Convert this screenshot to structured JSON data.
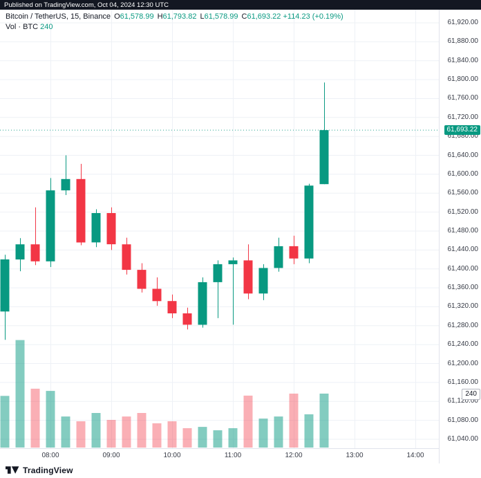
{
  "publish_bar": {
    "text": "Published on TradingView.com, Oct 04, 2024 12:30 UTC"
  },
  "legend": {
    "title": "Bitcoin / TetherUS, 15, Binance",
    "ohlc": {
      "o_label": "O",
      "o_value": "61,578.99",
      "h_label": "H",
      "h_value": "61,793.82",
      "l_label": "L",
      "l_value": "61,578.99",
      "c_label": "C",
      "c_value": "61,693.22",
      "change": "+114.23 (+0.19%)"
    },
    "volume_label": "Vol · BTC",
    "volume_value": "240"
  },
  "price_axis": {
    "labels": [
      "61,920.00",
      "61,880.00",
      "61,840.00",
      "61,800.00",
      "61,760.00",
      "61,720.00",
      "61,680.00",
      "61,640.00",
      "61,600.00",
      "61,560.00",
      "61,520.00",
      "61,480.00",
      "61,440.00",
      "61,400.00",
      "61,360.00",
      "61,320.00",
      "61,280.00",
      "61,240.00",
      "61,200.00",
      "61,160.00",
      "61,120.00",
      "61,080.00",
      "61,040.00"
    ],
    "last_price_label": "61,693.22",
    "volume_badge": "240"
  },
  "time_axis": {
    "labels": [
      "08:00",
      "09:00",
      "10:00",
      "11:00",
      "12:00",
      "13:00",
      "14:00"
    ]
  },
  "footer": {
    "brand": "TradingView"
  },
  "colors": {
    "up": "#089981",
    "down": "#F23645",
    "vol_up": "rgba(8,153,129,0.5)",
    "vol_down": "rgba(242,54,69,0.4)",
    "grid": "#eef1f6",
    "axis_text": "#363a45",
    "close_line": "#089981",
    "separator": "#e0e3eb",
    "publish_bg": "#131722"
  },
  "chart_data": {
    "type": "candlestick",
    "title": "Bitcoin / TetherUS, 15, Binance",
    "symbol": "Bitcoin / TetherUS",
    "interval_minutes": 15,
    "exchange": "Binance",
    "y_axis": {
      "min": 61040,
      "max": 61920,
      "step": 40
    },
    "x_ticks": [
      "08:00",
      "09:00",
      "10:00",
      "11:00",
      "12:00",
      "13:00",
      "14:00"
    ],
    "last_close": 61693.22,
    "last_close_label": "61,693.22",
    "last_volume": 240,
    "candles": [
      {
        "time": "07:15",
        "open": 61310,
        "high": 61430,
        "low": 61250,
        "close": 61420,
        "volume": 230
      },
      {
        "time": "07:30",
        "open": 61420,
        "high": 61465,
        "low": 61395,
        "close": 61452,
        "volume": 478
      },
      {
        "time": "07:45",
        "open": 61452,
        "high": 61530,
        "low": 61408,
        "close": 61416,
        "volume": 262
      },
      {
        "time": "08:00",
        "open": 61416,
        "high": 61592,
        "low": 61404,
        "close": 61566,
        "volume": 252
      },
      {
        "time": "08:15",
        "open": 61566,
        "high": 61640,
        "low": 61556,
        "close": 61590,
        "volume": 138
      },
      {
        "time": "08:30",
        "open": 61590,
        "high": 61622,
        "low": 61450,
        "close": 61456,
        "volume": 117
      },
      {
        "time": "08:45",
        "open": 61456,
        "high": 61526,
        "low": 61446,
        "close": 61518,
        "volume": 154
      },
      {
        "time": "09:00",
        "open": 61518,
        "high": 61530,
        "low": 61440,
        "close": 61452,
        "volume": 123
      },
      {
        "time": "09:15",
        "open": 61452,
        "high": 61466,
        "low": 61388,
        "close": 61398,
        "volume": 138
      },
      {
        "time": "09:30",
        "open": 61398,
        "high": 61412,
        "low": 61350,
        "close": 61358,
        "volume": 154
      },
      {
        "time": "09:45",
        "open": 61358,
        "high": 61382,
        "low": 61322,
        "close": 61332,
        "volume": 108
      },
      {
        "time": "10:00",
        "open": 61332,
        "high": 61346,
        "low": 61296,
        "close": 61306,
        "volume": 117
      },
      {
        "time": "10:15",
        "open": 61306,
        "high": 61318,
        "low": 61272,
        "close": 61282,
        "volume": 86
      },
      {
        "time": "10:30",
        "open": 61282,
        "high": 61382,
        "low": 61276,
        "close": 61372,
        "volume": 92
      },
      {
        "time": "10:45",
        "open": 61372,
        "high": 61418,
        "low": 61296,
        "close": 61410,
        "volume": 77
      },
      {
        "time": "11:00",
        "open": 61410,
        "high": 61424,
        "low": 61282,
        "close": 61418,
        "volume": 86
      },
      {
        "time": "11:15",
        "open": 61418,
        "high": 61452,
        "low": 61336,
        "close": 61348,
        "volume": 231
      },
      {
        "time": "11:30",
        "open": 61348,
        "high": 61410,
        "low": 61334,
        "close": 61402,
        "volume": 129
      },
      {
        "time": "11:45",
        "open": 61402,
        "high": 61466,
        "low": 61394,
        "close": 61448,
        "volume": 138
      },
      {
        "time": "12:00",
        "open": 61448,
        "high": 61470,
        "low": 61410,
        "close": 61422,
        "volume": 240
      },
      {
        "time": "12:15",
        "open": 61422,
        "high": 61580,
        "low": 61412,
        "close": 61576,
        "volume": 148
      },
      {
        "time": "12:30",
        "open": 61578.99,
        "high": 61793.82,
        "low": 61578.99,
        "close": 61693.22,
        "volume": 240
      }
    ]
  }
}
